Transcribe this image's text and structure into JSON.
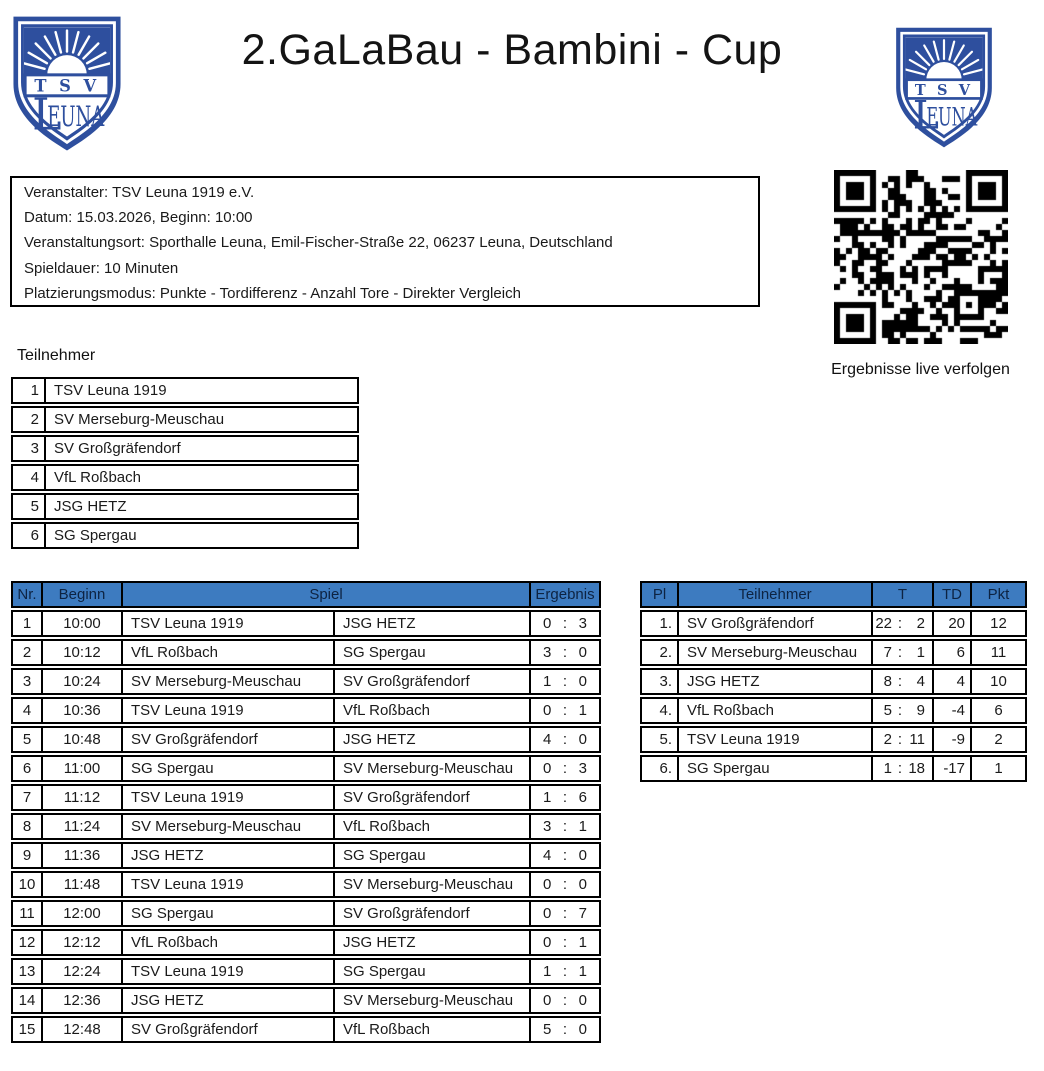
{
  "title": "2.GaLaBau - Bambini - Cup",
  "ui": {
    "colon": ":"
  },
  "logo": {
    "tsv": "T S V",
    "initial": "L",
    "rest": "EUNA"
  },
  "colors": {
    "logo_blue": "#2e4f9e",
    "table_header_blue": "#3d7bc0",
    "table_header_text": "#0d2342",
    "border_black": "#000000"
  },
  "info": {
    "lines": [
      "Veranstalter: TSV Leuna 1919 e.V.",
      "Datum: 15.03.2026, Beginn: 10:00",
      "Veranstaltungsort: Sporthalle Leuna, Emil-Fischer-Straße 22, 06237 Leuna, Deutschland",
      "Spieldauer: 10 Minuten",
      "Platzierungsmodus: Punkte - Tordifferenz - Anzahl Tore - Direkter Vergleich"
    ]
  },
  "qr": {
    "caption": "Ergebnisse live verfolgen"
  },
  "participants": {
    "label": "Teilnehmer",
    "rows": [
      {
        "nr": "1",
        "name": "TSV Leuna 1919"
      },
      {
        "nr": "2",
        "name": "SV Merseburg-Meuschau"
      },
      {
        "nr": "3",
        "name": "SV Großgräfendorf"
      },
      {
        "nr": "4",
        "name": "VfL Roßbach"
      },
      {
        "nr": "5",
        "name": "JSG HETZ"
      },
      {
        "nr": "6",
        "name": "SG Spergau"
      }
    ]
  },
  "schedule": {
    "headers": {
      "nr": "Nr.",
      "beginn": "Beginn",
      "spiel": "Spiel",
      "ergebnis": "Ergebnis"
    },
    "rows": [
      {
        "nr": "1",
        "time": "10:00",
        "home": "TSV Leuna 1919",
        "away": "JSG HETZ",
        "hg": "0",
        "ag": "3"
      },
      {
        "nr": "2",
        "time": "10:12",
        "home": "VfL Roßbach",
        "away": "SG Spergau",
        "hg": "3",
        "ag": "0"
      },
      {
        "nr": "3",
        "time": "10:24",
        "home": "SV Merseburg-Meuschau",
        "away": "SV Großgräfendorf",
        "hg": "1",
        "ag": "0"
      },
      {
        "nr": "4",
        "time": "10:36",
        "home": "TSV Leuna 1919",
        "away": "VfL Roßbach",
        "hg": "0",
        "ag": "1"
      },
      {
        "nr": "5",
        "time": "10:48",
        "home": "SV Großgräfendorf",
        "away": "JSG HETZ",
        "hg": "4",
        "ag": "0"
      },
      {
        "nr": "6",
        "time": "11:00",
        "home": "SG Spergau",
        "away": "SV Merseburg-Meuschau",
        "hg": "0",
        "ag": "3"
      },
      {
        "nr": "7",
        "time": "11:12",
        "home": "TSV Leuna 1919",
        "away": "SV Großgräfendorf",
        "hg": "1",
        "ag": "6"
      },
      {
        "nr": "8",
        "time": "11:24",
        "home": "SV Merseburg-Meuschau",
        "away": "VfL Roßbach",
        "hg": "3",
        "ag": "1"
      },
      {
        "nr": "9",
        "time": "11:36",
        "home": "JSG HETZ",
        "away": "SG Spergau",
        "hg": "4",
        "ag": "0"
      },
      {
        "nr": "10",
        "time": "11:48",
        "home": "TSV Leuna 1919",
        "away": "SV Merseburg-Meuschau",
        "hg": "0",
        "ag": "0"
      },
      {
        "nr": "11",
        "time": "12:00",
        "home": "SG Spergau",
        "away": "SV Großgräfendorf",
        "hg": "0",
        "ag": "7"
      },
      {
        "nr": "12",
        "time": "12:12",
        "home": "VfL Roßbach",
        "away": "JSG HETZ",
        "hg": "0",
        "ag": "1"
      },
      {
        "nr": "13",
        "time": "12:24",
        "home": "TSV Leuna 1919",
        "away": "SG Spergau",
        "hg": "1",
        "ag": "1"
      },
      {
        "nr": "14",
        "time": "12:36",
        "home": "JSG HETZ",
        "away": "SV Merseburg-Meuschau",
        "hg": "0",
        "ag": "0"
      },
      {
        "nr": "15",
        "time": "12:48",
        "home": "SV Großgräfendorf",
        "away": "VfL Roßbach",
        "hg": "5",
        "ag": "0"
      }
    ]
  },
  "standings": {
    "headers": {
      "pl": "Pl",
      "teilnehmer": "Teilnehmer",
      "t": "T",
      "td": "TD",
      "pkt": "Pkt"
    },
    "rows": [
      {
        "pl": "1.",
        "name": "SV Großgräfendorf",
        "gf": "22",
        "ga": "2",
        "td": "20",
        "pkt": "12"
      },
      {
        "pl": "2.",
        "name": "SV Merseburg-Meuschau",
        "gf": "7",
        "ga": "1",
        "td": "6",
        "pkt": "11"
      },
      {
        "pl": "3.",
        "name": "JSG HETZ",
        "gf": "8",
        "ga": "4",
        "td": "4",
        "pkt": "10"
      },
      {
        "pl": "4.",
        "name": "VfL Roßbach",
        "gf": "5",
        "ga": "9",
        "td": "-4",
        "pkt": "6"
      },
      {
        "pl": "5.",
        "name": "TSV Leuna 1919",
        "gf": "2",
        "ga": "11",
        "td": "-9",
        "pkt": "2"
      },
      {
        "pl": "6.",
        "name": "SG Spergau",
        "gf": "1",
        "ga": "18",
        "td": "-17",
        "pkt": "1"
      }
    ]
  }
}
